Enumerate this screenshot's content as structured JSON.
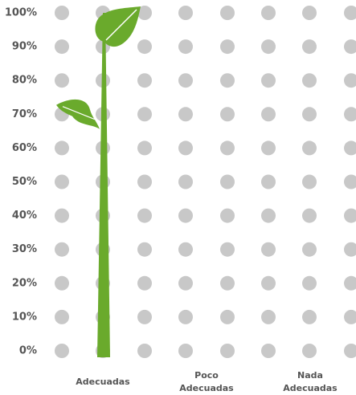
{
  "chart_data": {
    "type": "plant",
    "categories": [
      "Adecuadas",
      "Poco Adecuadas",
      "Nada Adecuadas"
    ],
    "values": [
      100,
      0,
      0
    ],
    "color": "#6aaa2c",
    "ylim": [
      0,
      100
    ],
    "yticks": [
      {
        "value": 0,
        "label": "0%"
      },
      {
        "value": 10,
        "label": "10%"
      },
      {
        "value": 20,
        "label": "20%"
      },
      {
        "value": 30,
        "label": "30%"
      },
      {
        "value": 40,
        "label": "40%"
      },
      {
        "value": 50,
        "label": "50%"
      },
      {
        "value": 60,
        "label": "60%"
      },
      {
        "value": 70,
        "label": "70%"
      },
      {
        "value": 80,
        "label": "80%"
      },
      {
        "value": 90,
        "label": "90%"
      },
      {
        "value": 100,
        "label": "100%"
      }
    ],
    "grid": true
  }
}
